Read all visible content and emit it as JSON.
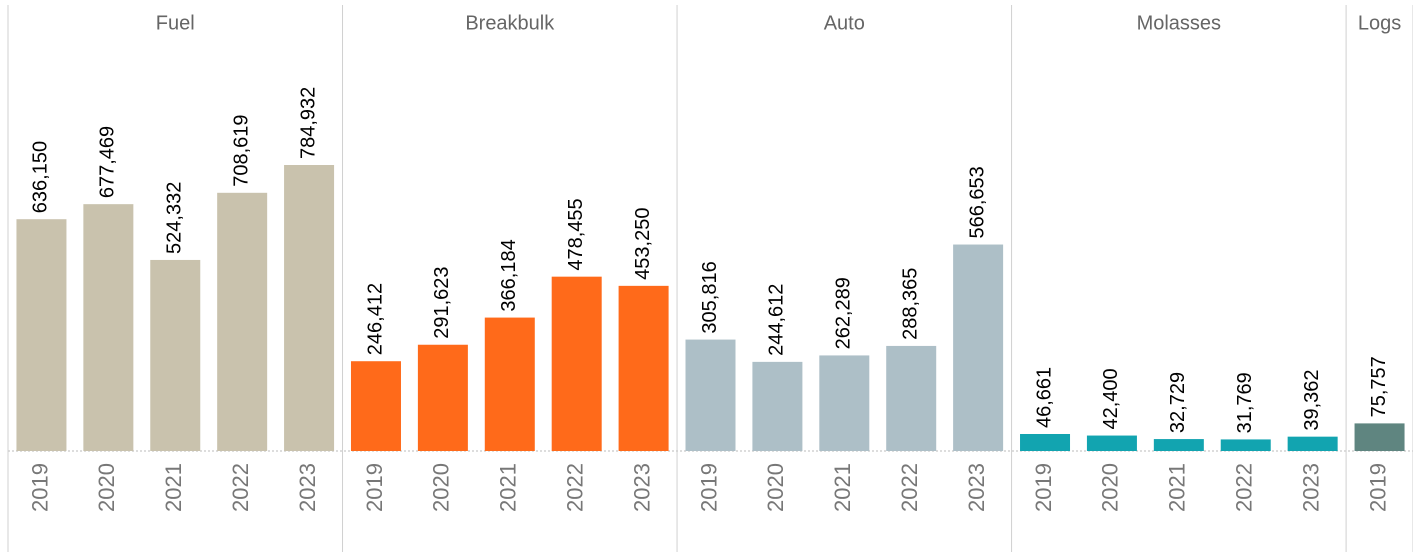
{
  "chart_data": {
    "type": "bar",
    "panels": [
      {
        "title": "Fuel",
        "color": "#c9c2ad",
        "categories": [
          "2019",
          "2020",
          "2021",
          "2022",
          "2023"
        ],
        "values": [
          636150,
          677469,
          524332,
          708619,
          784932
        ],
        "value_labels": [
          "636,150",
          "677,469",
          "524,332",
          "708,619",
          "784,932"
        ]
      },
      {
        "title": "Breakbulk",
        "color": "#ff6a1a",
        "categories": [
          "2019",
          "2020",
          "2021",
          "2022",
          "2023"
        ],
        "values": [
          246412,
          291623,
          366184,
          478455,
          453250
        ],
        "value_labels": [
          "246,412",
          "291,623",
          "366,184",
          "478,455",
          "453,250"
        ]
      },
      {
        "title": "Auto",
        "color": "#adbfc7",
        "categories": [
          "2019",
          "2020",
          "2021",
          "2022",
          "2023"
        ],
        "values": [
          305816,
          244612,
          262289,
          288365,
          566653
        ],
        "value_labels": [
          "305,816",
          "244,612",
          "262,289",
          "288,365",
          "566,653"
        ]
      },
      {
        "title": "Molasses",
        "color": "#12a4b0",
        "categories": [
          "2019",
          "2020",
          "2021",
          "2022",
          "2023"
        ],
        "values": [
          46661,
          42400,
          32729,
          31769,
          39362
        ],
        "value_labels": [
          "46,661",
          "42,400",
          "32,729",
          "31,769",
          "39,362"
        ]
      },
      {
        "title": "Logs",
        "color": "#5f8580",
        "categories": [
          "2019"
        ],
        "values": [
          75757
        ],
        "value_labels": [
          "75,757"
        ]
      }
    ]
  }
}
